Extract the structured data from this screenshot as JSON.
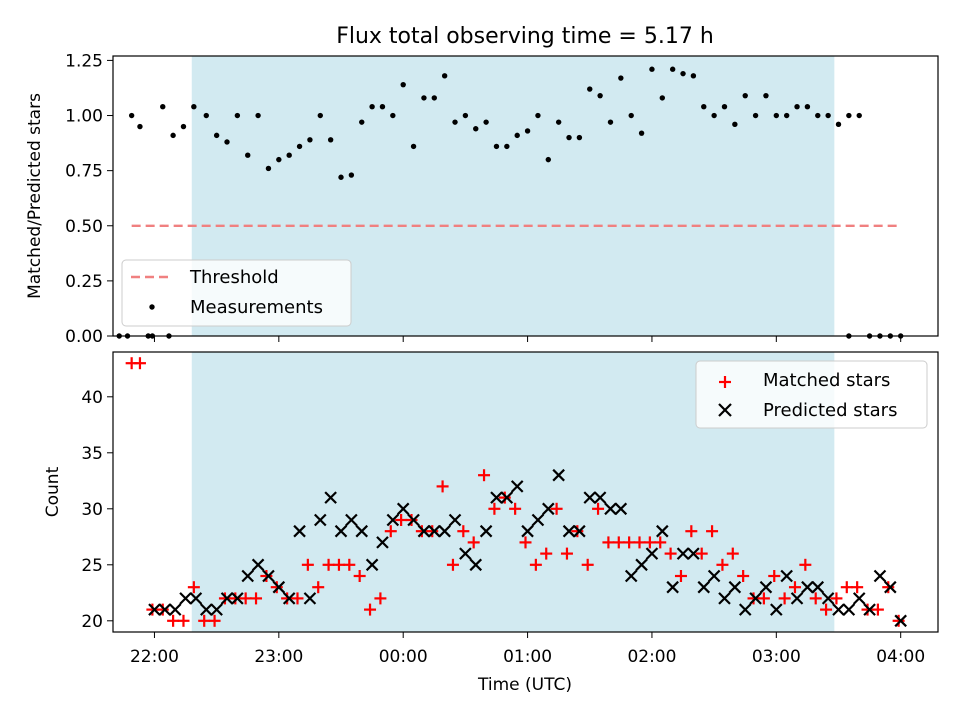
{
  "chart_data": [
    {
      "type": "scatter",
      "title": "Flux total observing time = 5.17 h",
      "xlabel": "",
      "ylabel": "Matched/Predicted stars",
      "ylim": [
        0,
        1.27
      ],
      "xlim": [
        "21:40",
        "04:18"
      ],
      "yticks": [
        "0.00",
        "0.25",
        "0.50",
        "0.75",
        "1.00",
        "1.25"
      ],
      "shaded_span": [
        "22:18",
        "03:28"
      ],
      "shade_color": "#add8e6",
      "grid": false,
      "legend": {
        "placement": "lower-left",
        "entries": [
          "Threshold",
          "Measurements"
        ]
      },
      "series": [
        {
          "name": "Threshold",
          "style": "dashed-line",
          "color": "#f08080",
          "x": [
            "21:49",
            "04:00"
          ],
          "y": [
            0.5,
            0.5
          ]
        },
        {
          "name": "Measurements",
          "style": "points",
          "color": "#000000",
          "x": [
            "21:49",
            "21:53",
            "21:59",
            "22:04",
            "22:09",
            "22:14",
            "22:19",
            "22:25",
            "22:30",
            "22:35",
            "22:40",
            "22:45",
            "22:50",
            "22:55",
            "23:00",
            "23:05",
            "23:10",
            "23:15",
            "23:20",
            "23:25",
            "23:30",
            "23:35",
            "23:40",
            "23:45",
            "23:50",
            "23:55",
            "00:00",
            "00:05",
            "00:10",
            "00:15",
            "00:20",
            "00:25",
            "00:30",
            "00:35",
            "00:40",
            "00:45",
            "00:50",
            "00:55",
            "01:00",
            "01:05",
            "01:10",
            "01:15",
            "01:20",
            "01:25",
            "01:30",
            "01:35",
            "01:40",
            "01:45",
            "01:50",
            "01:55",
            "02:00",
            "02:05",
            "02:10",
            "02:15",
            "02:20",
            "02:25",
            "02:30",
            "02:35",
            "02:40",
            "02:45",
            "02:50",
            "02:55",
            "03:00",
            "03:05",
            "03:10",
            "03:15",
            "03:20",
            "03:25",
            "03:30",
            "03:35",
            "03:40",
            "03:45",
            "03:50",
            "03:55",
            "04:00",
            "21:43",
            "21:47",
            "21:57",
            "22:07",
            "03:35"
          ],
          "y": [
            1.0,
            0.95,
            0.0,
            1.04,
            0.91,
            0.95,
            1.04,
            1.0,
            0.91,
            0.88,
            1.0,
            0.82,
            1.0,
            0.76,
            0.8,
            0.82,
            0.86,
            0.89,
            1.0,
            0.89,
            0.72,
            0.73,
            0.97,
            1.04,
            1.04,
            1.0,
            1.14,
            0.86,
            1.08,
            1.08,
            1.18,
            0.97,
            1.0,
            0.94,
            0.97,
            0.86,
            0.86,
            0.91,
            0.93,
            1.0,
            0.8,
            0.97,
            0.9,
            0.9,
            1.12,
            1.09,
            0.97,
            1.17,
            1.0,
            0.92,
            1.21,
            1.08,
            1.21,
            1.19,
            1.18,
            1.04,
            1.0,
            1.04,
            0.96,
            1.09,
            1.0,
            1.09,
            1.0,
            1.0,
            1.04,
            1.04,
            1.0,
            1.0,
            0.96,
            1.0,
            1.0,
            0.0,
            0.0,
            0.0,
            0.0,
            0.0,
            0.0,
            0.0,
            0.0,
            0.0
          ]
        }
      ]
    },
    {
      "type": "scatter",
      "title": "",
      "xlabel": "Time (UTC)",
      "ylabel": "Count",
      "ylim": [
        19,
        44
      ],
      "xlim": [
        "21:40",
        "04:18"
      ],
      "xticks": [
        "22:00",
        "23:00",
        "00:00",
        "01:00",
        "02:00",
        "03:00",
        "04:00"
      ],
      "yticks": [
        "20",
        "25",
        "30",
        "35",
        "40"
      ],
      "shaded_span": [
        "22:18",
        "03:28"
      ],
      "shade_color": "#add8e6",
      "grid": false,
      "legend": {
        "placement": "top-right",
        "entries": [
          "Matched stars",
          "Predicted stars"
        ]
      },
      "series": [
        {
          "name": "Matched stars",
          "marker": "plus",
          "color": "#ff0000",
          "x": [
            "21:49",
            "21:53",
            "21:59",
            "22:04",
            "22:09",
            "22:14",
            "22:19",
            "22:24",
            "22:29",
            "22:34",
            "22:39",
            "22:44",
            "22:49",
            "22:54",
            "22:59",
            "23:04",
            "23:09",
            "23:14",
            "23:19",
            "23:24",
            "23:29",
            "23:34",
            "23:39",
            "23:44",
            "23:49",
            "23:54",
            "23:59",
            "00:04",
            "00:09",
            "00:14",
            "00:19",
            "00:24",
            "00:29",
            "00:34",
            "00:39",
            "00:44",
            "00:49",
            "00:54",
            "00:59",
            "01:04",
            "01:09",
            "01:14",
            "01:19",
            "01:24",
            "01:29",
            "01:34",
            "01:39",
            "01:44",
            "01:49",
            "01:54",
            "01:59",
            "02:04",
            "02:09",
            "02:14",
            "02:19",
            "02:24",
            "02:29",
            "02:34",
            "02:39",
            "02:44",
            "02:49",
            "02:54",
            "02:59",
            "03:04",
            "03:09",
            "03:14",
            "03:19",
            "03:24",
            "03:29",
            "03:34",
            "03:39",
            "03:44",
            "03:49",
            "03:54",
            "03:59"
          ],
          "y": [
            43,
            43,
            21,
            21,
            20,
            20,
            23,
            20,
            20,
            22,
            22,
            22,
            22,
            24,
            23,
            22,
            22,
            25,
            23,
            25,
            25,
            25,
            24,
            21,
            22,
            28,
            29,
            29,
            28,
            28,
            32,
            25,
            28,
            27,
            33,
            30,
            31,
            30,
            27,
            25,
            26,
            30,
            26,
            28,
            25,
            30,
            27,
            27,
            27,
            27,
            27,
            27,
            26,
            24,
            28,
            26,
            28,
            25,
            26,
            24,
            22,
            22,
            24,
            22,
            23,
            25,
            22,
            21,
            22,
            23,
            23,
            21,
            21,
            23,
            20
          ]
        },
        {
          "name": "Predicted stars",
          "marker": "x",
          "color": "#000000",
          "x": [
            "22:00",
            "22:05",
            "22:10",
            "22:15",
            "22:20",
            "22:25",
            "22:30",
            "22:35",
            "22:40",
            "22:45",
            "22:50",
            "22:55",
            "23:00",
            "23:05",
            "23:10",
            "23:15",
            "23:20",
            "23:25",
            "23:30",
            "23:35",
            "23:40",
            "23:45",
            "23:50",
            "23:55",
            "00:00",
            "00:05",
            "00:10",
            "00:15",
            "00:20",
            "00:25",
            "00:30",
            "00:35",
            "00:40",
            "00:45",
            "00:50",
            "00:55",
            "01:00",
            "01:05",
            "01:10",
            "01:15",
            "01:20",
            "01:25",
            "01:30",
            "01:35",
            "01:40",
            "01:45",
            "01:50",
            "01:55",
            "02:00",
            "02:05",
            "02:10",
            "02:15",
            "02:20",
            "02:25",
            "02:30",
            "02:35",
            "02:40",
            "02:45",
            "02:50",
            "02:55",
            "03:00",
            "03:05",
            "03:10",
            "03:15",
            "03:20",
            "03:25",
            "03:30",
            "03:35",
            "03:40",
            "03:45",
            "03:50",
            "03:55",
            "04:00"
          ],
          "y": [
            21,
            21,
            21,
            22,
            22,
            21,
            21,
            22,
            22,
            24,
            25,
            24,
            23,
            22,
            28,
            22,
            29,
            31,
            28,
            29,
            28,
            25,
            27,
            29,
            30,
            29,
            28,
            28,
            28,
            29,
            26,
            25,
            28,
            31,
            31,
            32,
            28,
            29,
            30,
            33,
            28,
            28,
            31,
            31,
            30,
            30,
            24,
            25,
            26,
            28,
            23,
            26,
            26,
            23,
            24,
            22,
            23,
            21,
            22,
            23,
            21,
            24,
            22,
            23,
            23,
            22,
            21,
            21,
            22,
            21,
            24,
            23,
            20
          ]
        }
      ]
    }
  ]
}
